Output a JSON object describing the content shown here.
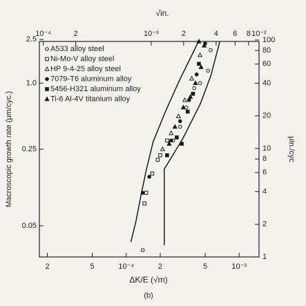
{
  "chart_data": {
    "type": "scatter",
    "x_label": "ΔK/E (√m)",
    "y_label": "Macroscopic growth rate (μm/cyc.)",
    "x2_label": "√in.",
    "y2_label": "μin./cyc",
    "caption": "(b)",
    "xscale": "log",
    "yscale": "log",
    "x2scale": "log",
    "y2scale": "log",
    "xlim": [
      1.7e-05,
      0.0015
    ],
    "ylim": [
      0.026,
      2.4
    ],
    "x2lim": [
      9.2e-05,
      0.01
    ],
    "y2lim": [
      1,
      97
    ],
    "xticks": [
      {
        "value": 2e-05,
        "label": "2"
      },
      {
        "value": 5e-05,
        "label": "5"
      },
      {
        "value": 0.0001,
        "label": "10⁻⁴"
      },
      {
        "value": 0.0002,
        "label": "2"
      },
      {
        "value": 0.0005,
        "label": "5"
      },
      {
        "value": 0.001,
        "label": "10⁻³"
      }
    ],
    "yticks": [
      0.05,
      0.25,
      {
        "value": 1,
        "label": "1.0"
      },
      2.5
    ],
    "x2ticks": [
      {
        "value": 0.0001,
        "label": "10⁻⁴"
      },
      {
        "value": 0.0002,
        "label": "2"
      },
      {
        "value": 0.001,
        "label": "10⁻³"
      },
      {
        "value": 0.002,
        "label": "2"
      },
      {
        "value": 0.004,
        "label": "4"
      },
      {
        "value": 0.006,
        "label": "6"
      },
      {
        "value": 0.008,
        "label": "8"
      },
      {
        "value": 0.01,
        "label": "10⁻²"
      }
    ],
    "y2ticks": [
      1,
      2,
      4,
      6,
      8,
      10,
      20,
      40,
      60,
      80,
      100
    ],
    "grid": false,
    "legend": "upper-left",
    "color": "#1a1a1a",
    "series": [
      {
        "name": "A533 alloy steel",
        "marker": "circle",
        "filled": false,
        "x": [
          0.00014,
          0.00026,
          0.0003,
          0.00034,
          0.0004,
          0.00045,
          0.00053,
          0.00056
        ],
        "values": [
          0.03,
          0.3,
          0.4,
          0.6,
          0.9,
          1.0,
          1.3,
          2.0
        ]
      },
      {
        "name": "Ni-Mo-V alloy steel",
        "marker": "square",
        "filled": false,
        "x": [
          0.000145,
          0.00015,
          0.00017,
          0.00019,
          0.0002,
          0.00023
        ],
        "values": [
          0.08,
          0.1,
          0.15,
          0.2,
          0.22,
          0.3
        ]
      },
      {
        "name": "HP 9-4-25 alloy steel",
        "marker": "triangle",
        "filled": false,
        "x": [
          0.00021,
          0.00025,
          0.00029,
          0.00033,
          0.00038,
          0.00045
        ],
        "values": [
          0.25,
          0.35,
          0.5,
          0.7,
          1.1,
          1.8
        ]
      },
      {
        "name": "7079-T6 aluminum alloy",
        "marker": "circle",
        "filled": true,
        "x": [
          0.00014,
          0.00016,
          0.00025,
          0.0003,
          0.00036,
          0.00042,
          0.0005
        ],
        "values": [
          0.1,
          0.14,
          0.3,
          0.45,
          0.7,
          1.2,
          2.3
        ]
      },
      {
        "name": "5456-H321 aluminum alloy",
        "marker": "square",
        "filled": true,
        "x": [
          0.00023,
          0.00028,
          0.00031,
          0.00035,
          0.00039,
          0.00044
        ],
        "values": [
          0.22,
          0.32,
          0.28,
          0.55,
          0.8,
          1.5
        ]
      },
      {
        "name": "Ti-6 Al-4V titanium alloy",
        "marker": "triangle",
        "filled": true,
        "x": [
          0.00024,
          0.00027,
          0.00032,
          0.00037,
          0.00041,
          0.00046,
          0.00049,
          0.00044
        ],
        "values": [
          0.28,
          0.4,
          0.6,
          0.75,
          1.0,
          1.4,
          2.2,
          2.4
        ]
      }
    ],
    "bounds": [
      {
        "x": [
          0.00011,
          0.000122,
          0.000136,
          0.000151,
          0.000173,
          0.000224,
          0.000297,
          0.000393,
          0.000435
        ],
        "values": [
          0.0357,
          0.0552,
          0.0986,
          0.164,
          0.292,
          0.56,
          1.07,
          1.92,
          2.38
        ]
      },
      {
        "x": [
          0.000217,
          0.000217,
          0.000217,
          0.000318,
          0.000453,
          0.00056,
          0.000673
        ],
        "values": [
          0.0333,
          0.0552,
          0.164,
          0.314,
          0.648,
          1.16,
          2.38
        ]
      }
    ]
  }
}
